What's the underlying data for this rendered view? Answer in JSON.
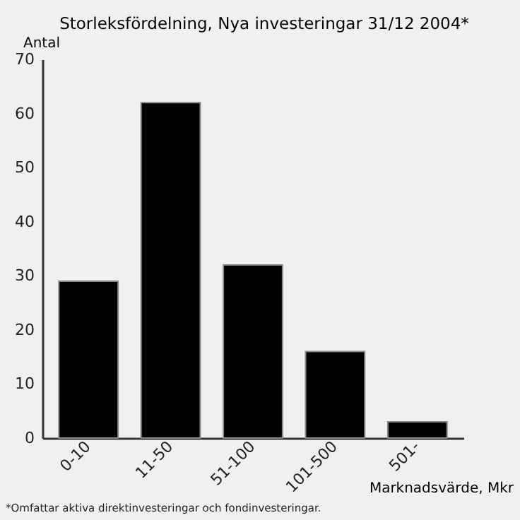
{
  "chart_data": {
    "type": "bar",
    "title": "Storleksfördelning, Nya investeringar 31/12 2004*",
    "xlabel": "Marknadsvärde, Mkr",
    "ylabel": "Antal",
    "categories": [
      "0-10",
      "11-50",
      "51-100",
      "101-500",
      "501-"
    ],
    "values": [
      29,
      62,
      32,
      16,
      3
    ],
    "color": "#000000",
    "ylim": [
      0,
      70
    ],
    "yticks": [
      0,
      10,
      20,
      30,
      40,
      50,
      60,
      70
    ],
    "grid": false,
    "annotations": [
      "*Omfattar aktiva direktinvesteringar och fondinvesteringar."
    ]
  }
}
